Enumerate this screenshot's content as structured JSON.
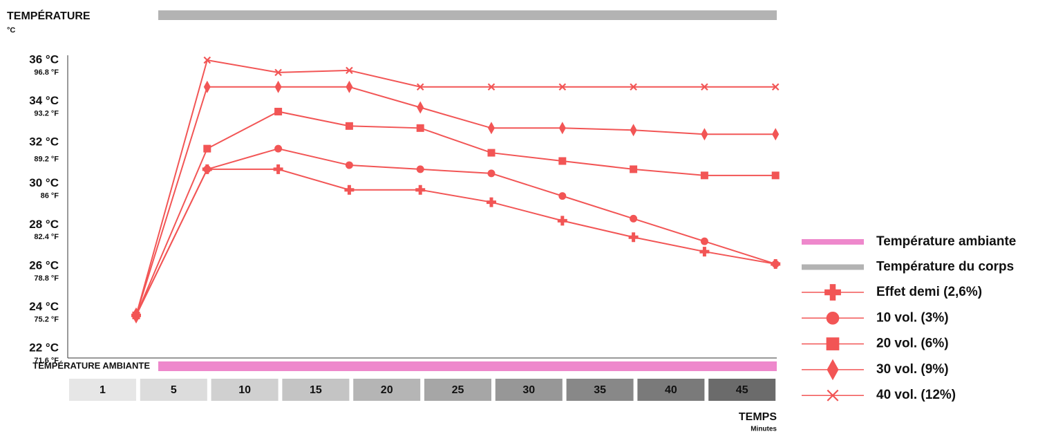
{
  "chart_data": {
    "type": "line",
    "title": "TEMPÉRATURE",
    "subtitle": "°C",
    "x_label": "TEMPS",
    "x_sublabel": "Minutes",
    "categories": [
      "1",
      "5",
      "10",
      "15",
      "20",
      "25",
      "30",
      "35",
      "40",
      "45"
    ],
    "category_colors": [
      "#e6e6e6",
      "#dcdcdc",
      "#d0d0d0",
      "#c4c4c4",
      "#b5b5b5",
      "#a6a6a6",
      "#979797",
      "#888888",
      "#7a7a7a",
      "#6b6b6b"
    ],
    "ylim": [
      21.5,
      37
    ],
    "yticks": [
      {
        "value": 36,
        "label": "36 °C"
      },
      {
        "value": 34,
        "label": "34 °C"
      },
      {
        "value": 32,
        "label": "32 °C"
      },
      {
        "value": 30,
        "label": "30 °C"
      },
      {
        "value": 28,
        "label": "28 °C"
      },
      {
        "value": 26,
        "label": "26 °C"
      },
      {
        "value": 24,
        "label": "24 °C"
      },
      {
        "value": 22,
        "label": "22 °C"
      }
    ],
    "y2lim": [
      70.7,
      98.6
    ],
    "y2ticks": [
      {
        "value": 96.8,
        "label": "96.8 °F"
      },
      {
        "value": 93.2,
        "label": "93.2 °F"
      },
      {
        "value": 89.2,
        "label": "89.2 °F"
      },
      {
        "value": 86,
        "label": "86 °F"
      },
      {
        "value": 82.4,
        "label": "82.4 °F"
      },
      {
        "value": 78.8,
        "label": "78.8 °F"
      },
      {
        "value": 75.2,
        "label": "75.2 °F"
      },
      {
        "value": 71.6,
        "label": "71.6 °F"
      }
    ],
    "bands": [
      {
        "name": "Température ambiante",
        "axis_label": "TEMPÉRATURE AMBIANTE",
        "color": "#ee88cc",
        "position": "bottom"
      },
      {
        "name": "Température du corps",
        "color": "#b3b3b3",
        "position": "top"
      }
    ],
    "series": [
      {
        "name": "Effet demi (2,6%)",
        "color": "#f25555",
        "marker": "plus",
        "values": [
          23.6,
          30.7,
          30.7,
          29.7,
          29.7,
          29.1,
          28.2,
          27.4,
          26.7,
          26.1
        ]
      },
      {
        "name": "10 vol. (3%)",
        "color": "#f25555",
        "marker": "circle",
        "values": [
          23.6,
          30.7,
          31.7,
          30.9,
          30.7,
          30.5,
          29.4,
          28.3,
          27.2,
          26.1
        ]
      },
      {
        "name": "20 vol. (6%)",
        "color": "#f25555",
        "marker": "square",
        "values": [
          23.6,
          31.7,
          33.5,
          32.8,
          32.7,
          31.5,
          31.1,
          30.7,
          30.4,
          30.4
        ]
      },
      {
        "name": "30 vol. (9%)",
        "color": "#f25555",
        "marker": "diamond",
        "values": [
          23.6,
          34.7,
          34.7,
          34.7,
          33.7,
          32.7,
          32.7,
          32.6,
          32.4,
          32.4
        ]
      },
      {
        "name": "40 vol. (12%)",
        "color": "#f25555",
        "marker": "x",
        "values": [
          23.6,
          36,
          35.4,
          35.5,
          34.7,
          34.7,
          34.7,
          34.7,
          34.7,
          34.7
        ]
      }
    ]
  }
}
